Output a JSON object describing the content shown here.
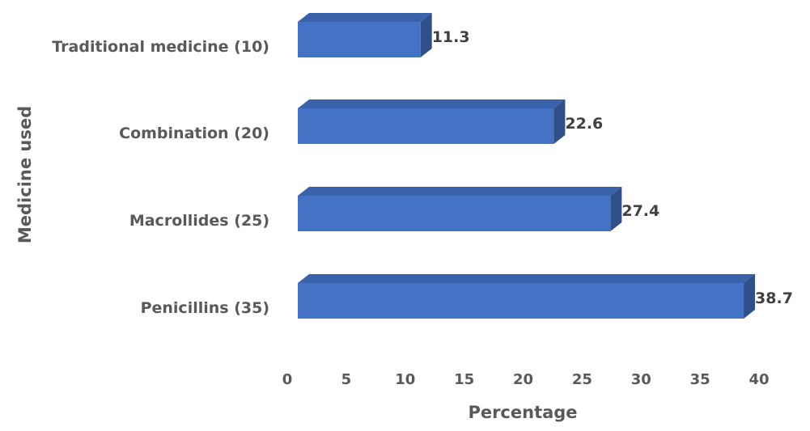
{
  "chart_data": {
    "type": "bar",
    "orientation": "horizontal",
    "style": "3d",
    "categories": [
      "Traditional medicine (10)",
      "Combination (20)",
      "Macrollides (25)",
      "Penicillins (35)"
    ],
    "values": [
      11.3,
      22.6,
      27.4,
      38.7
    ],
    "data_labels": [
      "11.3",
      "22.6",
      "27.4",
      "38.7"
    ],
    "xlabel": "Percentage",
    "ylabel": "Medicine used",
    "xlim": [
      0,
      40
    ],
    "x_ticks": [
      "0",
      "5",
      "10",
      "15",
      "20",
      "25",
      "30",
      "35",
      "40"
    ],
    "grid": false,
    "legend": "none",
    "colors": {
      "bar_front": "#4472C4",
      "bar_top": "#3A62AA",
      "bar_side": "#2F4F8B"
    }
  }
}
